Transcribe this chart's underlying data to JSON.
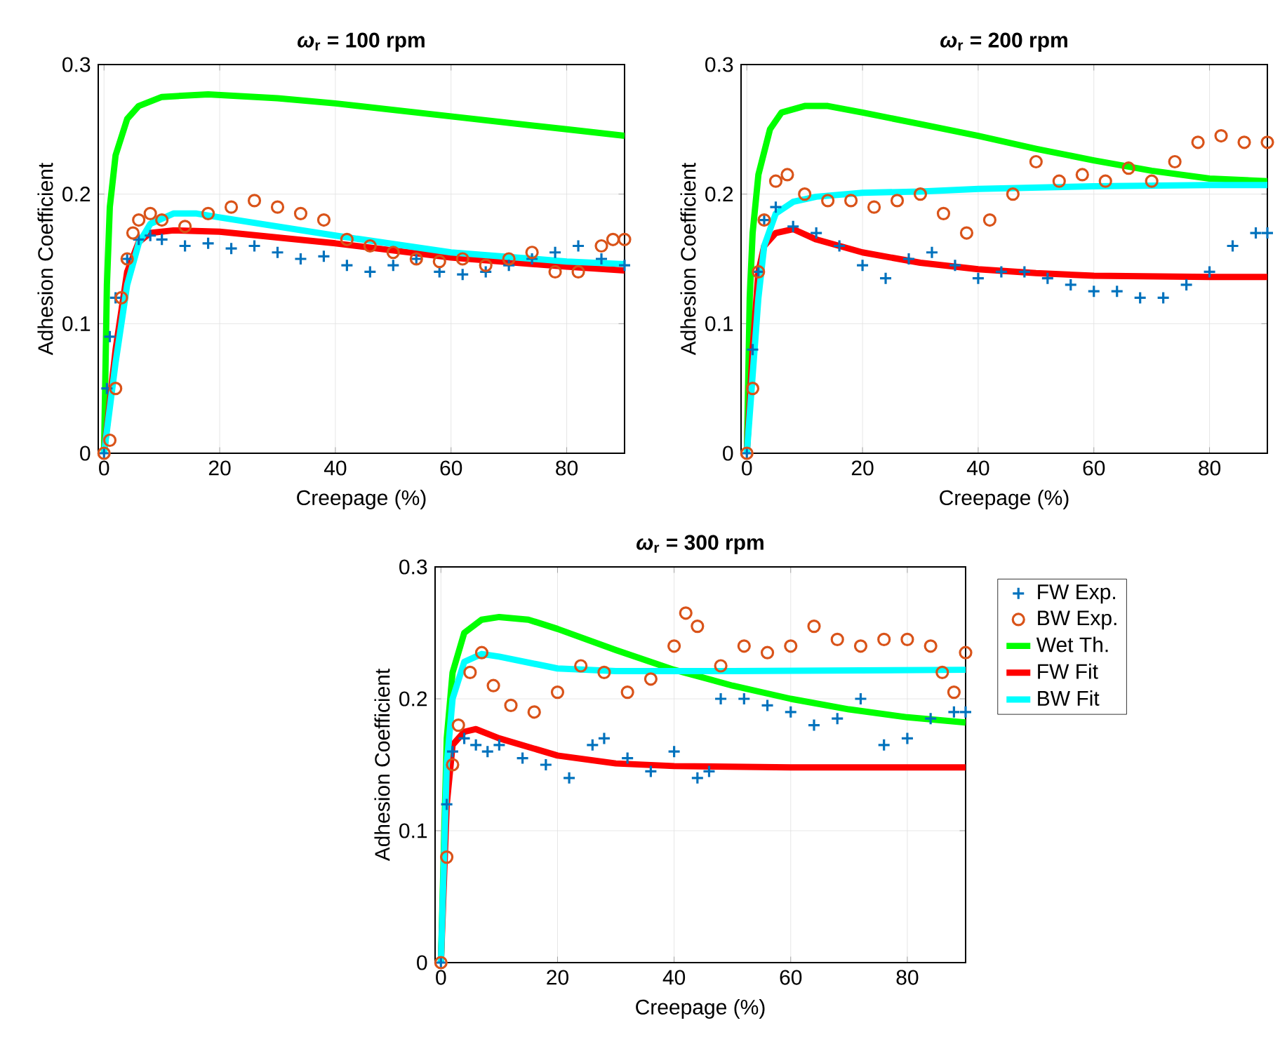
{
  "chart_data": [
    {
      "type": "line",
      "title": "*ω*$_{r}$ = 100 rpm",
      "xlabel": "Creepage (%)",
      "ylabel": "Adhesion Coefficient",
      "xlim": [
        -1,
        90
      ],
      "ylim": [
        0,
        0.3
      ],
      "xticks": [
        0,
        20,
        40,
        60,
        80
      ],
      "yticks": [
        0,
        0.1,
        0.2,
        0.3
      ],
      "grid": true,
      "series": [
        {
          "type": "scatter",
          "marker": "cross",
          "color": "#0072bd",
          "x": [
            0,
            0.5,
            1,
            2,
            4,
            6,
            8,
            10,
            14,
            18,
            22,
            26,
            30,
            34,
            38,
            42,
            46,
            50,
            54,
            58,
            62,
            66,
            70,
            74,
            78,
            82,
            86,
            90
          ],
          "values": [
            0,
            0.05,
            0.09,
            0.12,
            0.15,
            0.165,
            0.168,
            0.165,
            0.16,
            0.162,
            0.158,
            0.16,
            0.155,
            0.15,
            0.152,
            0.145,
            0.14,
            0.145,
            0.15,
            0.14,
            0.138,
            0.14,
            0.145,
            0.15,
            0.155,
            0.16,
            0.15,
            0.145
          ]
        },
        {
          "type": "scatter",
          "marker": "circle",
          "color": "#d95319",
          "x": [
            0,
            1,
            2,
            3,
            4,
            5,
            6,
            8,
            10,
            14,
            18,
            22,
            26,
            30,
            34,
            38,
            42,
            46,
            50,
            54,
            58,
            62,
            66,
            70,
            74,
            78,
            82,
            86,
            88,
            90
          ],
          "values": [
            0,
            0.01,
            0.05,
            0.12,
            0.15,
            0.17,
            0.18,
            0.185,
            0.18,
            0.175,
            0.185,
            0.19,
            0.195,
            0.19,
            0.185,
            0.18,
            0.165,
            0.16,
            0.155,
            0.15,
            0.148,
            0.15,
            0.145,
            0.15,
            0.155,
            0.14,
            0.14,
            0.16,
            0.165,
            0.165
          ]
        },
        {
          "color": "#00ff00",
          "x": [
            0,
            0.5,
            1,
            2,
            4,
            6,
            10,
            18,
            30,
            40,
            60,
            80,
            90
          ],
          "values": [
            0,
            0.13,
            0.19,
            0.23,
            0.258,
            0.268,
            0.275,
            0.277,
            0.274,
            0.27,
            0.26,
            0.25,
            0.245
          ]
        },
        {
          "color": "#ff0000",
          "x": [
            0,
            2,
            4,
            6,
            8,
            12,
            20,
            40,
            60,
            80,
            90
          ],
          "values": [
            0,
            0.08,
            0.14,
            0.163,
            0.17,
            0.172,
            0.171,
            0.162,
            0.151,
            0.144,
            0.141
          ]
        },
        {
          "color": "#00ffff",
          "x": [
            0,
            2,
            4,
            6,
            8,
            12,
            16,
            20,
            40,
            60,
            80,
            90
          ],
          "values": [
            0,
            0.07,
            0.13,
            0.162,
            0.177,
            0.185,
            0.185,
            0.182,
            0.168,
            0.155,
            0.148,
            0.146
          ]
        }
      ]
    },
    {
      "type": "line",
      "title": "*ω*$_{r}$ = 200 rpm",
      "xlabel": "Creepage (%)",
      "ylabel": "Adhesion Coefficient",
      "xlim": [
        -1,
        90
      ],
      "ylim": [
        0,
        0.3
      ],
      "xticks": [
        0,
        20,
        40,
        60,
        80
      ],
      "yticks": [
        0,
        0.1,
        0.2,
        0.3
      ],
      "grid": true,
      "series": [
        {
          "type": "scatter",
          "marker": "cross",
          "color": "#0072bd",
          "x": [
            0,
            1,
            2,
            3,
            5,
            8,
            12,
            16,
            20,
            24,
            28,
            32,
            36,
            40,
            44,
            48,
            52,
            56,
            60,
            64,
            68,
            72,
            76,
            80,
            84,
            88,
            90
          ],
          "values": [
            0,
            0.08,
            0.14,
            0.18,
            0.19,
            0.175,
            0.17,
            0.16,
            0.145,
            0.135,
            0.15,
            0.155,
            0.145,
            0.135,
            0.14,
            0.14,
            0.135,
            0.13,
            0.125,
            0.125,
            0.12,
            0.12,
            0.13,
            0.14,
            0.16,
            0.17,
            0.17
          ]
        },
        {
          "type": "scatter",
          "marker": "circle",
          "color": "#d95319",
          "x": [
            0,
            1,
            2,
            3,
            5,
            7,
            10,
            14,
            18,
            22,
            26,
            30,
            34,
            38,
            42,
            46,
            50,
            54,
            58,
            62,
            66,
            70,
            74,
            78,
            82,
            86,
            90
          ],
          "values": [
            0,
            0.05,
            0.14,
            0.18,
            0.21,
            0.215,
            0.2,
            0.195,
            0.195,
            0.19,
            0.195,
            0.2,
            0.185,
            0.17,
            0.18,
            0.2,
            0.225,
            0.21,
            0.215,
            0.21,
            0.22,
            0.21,
            0.225,
            0.24,
            0.245,
            0.24,
            0.24
          ]
        },
        {
          "color": "#00ff00",
          "x": [
            0,
            0.5,
            1,
            2,
            4,
            6,
            10,
            14,
            20,
            30,
            40,
            50,
            60,
            70,
            80,
            90
          ],
          "values": [
            0,
            0.12,
            0.17,
            0.215,
            0.25,
            0.263,
            0.268,
            0.268,
            0.263,
            0.254,
            0.245,
            0.235,
            0.226,
            0.218,
            0.212,
            0.21
          ]
        },
        {
          "color": "#ff0000",
          "x": [
            0,
            1,
            2,
            3,
            5,
            8,
            12,
            20,
            30,
            40,
            50,
            60,
            80,
            90
          ],
          "values": [
            0,
            0.08,
            0.14,
            0.16,
            0.17,
            0.173,
            0.165,
            0.155,
            0.147,
            0.142,
            0.139,
            0.137,
            0.136,
            0.136
          ]
        },
        {
          "color": "#00ffff",
          "x": [
            0,
            1,
            2,
            3,
            5,
            8,
            12,
            20,
            30,
            40,
            60,
            80,
            90
          ],
          "values": [
            0,
            0.06,
            0.12,
            0.16,
            0.185,
            0.194,
            0.198,
            0.201,
            0.202,
            0.204,
            0.206,
            0.207,
            0.207
          ]
        }
      ]
    },
    {
      "type": "line",
      "title": "*ω*$_{r}$ = 300 rpm",
      "xlabel": "Creepage (%)",
      "ylabel": "Adhesion Coefficient",
      "xlim": [
        -1,
        90
      ],
      "ylim": [
        0,
        0.3
      ],
      "xticks": [
        0,
        20,
        40,
        60,
        80
      ],
      "yticks": [
        0,
        0.1,
        0.2,
        0.3
      ],
      "grid": true,
      "legend": "right",
      "series": [
        {
          "type": "scatter",
          "marker": "cross",
          "name": "FW Exp.",
          "color": "#0072bd",
          "x": [
            0,
            1,
            2,
            4,
            6,
            8,
            10,
            14,
            18,
            22,
            26,
            28,
            32,
            36,
            40,
            44,
            46,
            48,
            52,
            56,
            60,
            64,
            68,
            72,
            76,
            80,
            84,
            88,
            90
          ],
          "values": [
            0,
            0.12,
            0.16,
            0.17,
            0.165,
            0.16,
            0.165,
            0.155,
            0.15,
            0.14,
            0.165,
            0.17,
            0.155,
            0.145,
            0.16,
            0.14,
            0.145,
            0.2,
            0.2,
            0.195,
            0.19,
            0.18,
            0.185,
            0.2,
            0.165,
            0.17,
            0.185,
            0.19,
            0.19
          ]
        },
        {
          "type": "scatter",
          "marker": "circle",
          "name": "BW Exp.",
          "color": "#d95319",
          "x": [
            0,
            1,
            2,
            3,
            5,
            7,
            9,
            12,
            16,
            20,
            24,
            28,
            32,
            36,
            40,
            42,
            44,
            48,
            52,
            56,
            60,
            64,
            68,
            72,
            76,
            80,
            84,
            86,
            88,
            90
          ],
          "values": [
            0,
            0.08,
            0.15,
            0.18,
            0.22,
            0.235,
            0.21,
            0.195,
            0.19,
            0.205,
            0.225,
            0.22,
            0.205,
            0.215,
            0.24,
            0.265,
            0.255,
            0.225,
            0.24,
            0.235,
            0.24,
            0.255,
            0.245,
            0.24,
            0.245,
            0.245,
            0.24,
            0.22,
            0.205,
            0.235
          ]
        },
        {
          "name": "Wet Th.",
          "color": "#00ff00",
          "x": [
            0,
            1,
            2,
            4,
            7,
            10,
            15,
            20,
            30,
            40,
            50,
            60,
            70,
            80,
            90
          ],
          "values": [
            0,
            0.17,
            0.22,
            0.25,
            0.26,
            0.262,
            0.26,
            0.253,
            0.237,
            0.222,
            0.21,
            0.2,
            0.192,
            0.186,
            0.182
          ]
        },
        {
          "name": "FW Fit",
          "color": "#ff0000",
          "x": [
            0,
            1,
            2,
            4,
            6,
            10,
            20,
            30,
            40,
            60,
            90
          ],
          "values": [
            0,
            0.12,
            0.165,
            0.175,
            0.177,
            0.17,
            0.157,
            0.151,
            0.149,
            0.148,
            0.148
          ]
        },
        {
          "name": "BW Fit",
          "color": "#00ffff",
          "x": [
            0,
            1,
            2,
            4,
            7,
            10,
            20,
            30,
            50,
            90
          ],
          "values": [
            0,
            0.15,
            0.2,
            0.228,
            0.234,
            0.232,
            0.223,
            0.221,
            0.221,
            0.222
          ]
        }
      ]
    }
  ]
}
